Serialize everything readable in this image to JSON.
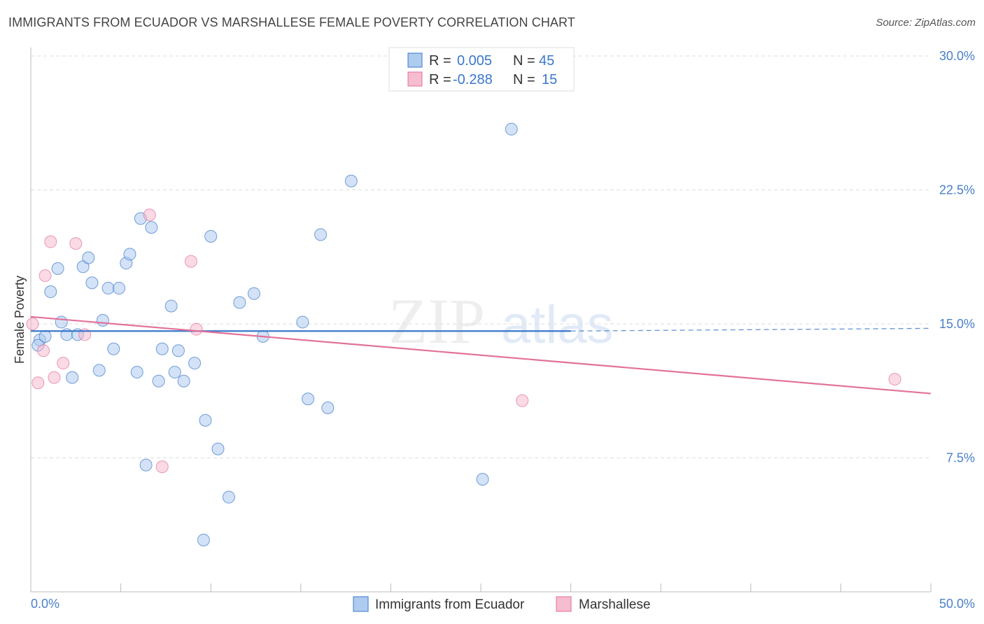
{
  "header": {
    "title": "IMMIGRANTS FROM ECUADOR VS MARSHALLESE FEMALE POVERTY CORRELATION CHART",
    "source": "Source: ZipAtlas.com"
  },
  "colors": {
    "blue": "#3a78c9",
    "blue_fill": "#aecbf0",
    "pink": "#e2719b",
    "pink_fill": "#f6bcd0",
    "grid": "#dddddd"
  },
  "chart_data": {
    "type": "scatter",
    "title": "IMMIGRANTS FROM ECUADOR VS MARSHALLESE FEMALE POVERTY CORRELATION CHART",
    "xlabel": "",
    "ylabel": "Female Poverty",
    "xlim": [
      0,
      50
    ],
    "ylim": [
      0,
      30
    ],
    "x_tick_labels": [
      "0.0%",
      "50.0%"
    ],
    "y_ticks": [
      7.5,
      15.0,
      22.5,
      30.0
    ],
    "y_tick_labels": [
      "7.5%",
      "15.0%",
      "22.5%",
      "30.0%"
    ],
    "grid": true,
    "watermark": "ZIPatlas",
    "stats": [
      {
        "r_label": "R =",
        "r": "0.005",
        "n_label": "N =",
        "n": "45"
      },
      {
        "r_label": "R =",
        "r": "-0.288",
        "n_label": "N =",
        "n": "15"
      }
    ],
    "series": [
      {
        "name": "Immigrants from Ecuador",
        "color": "#3a78c9",
        "points": [
          [
            0.5,
            14.1
          ],
          [
            0.8,
            14.3
          ],
          [
            1.1,
            16.8
          ],
          [
            1.5,
            18.1
          ],
          [
            1.7,
            15.1
          ],
          [
            2.0,
            14.4
          ],
          [
            2.3,
            12.0
          ],
          [
            2.6,
            14.4
          ],
          [
            2.9,
            18.2
          ],
          [
            3.2,
            18.7
          ],
          [
            3.4,
            17.3
          ],
          [
            3.8,
            12.4
          ],
          [
            4.0,
            15.2
          ],
          [
            4.3,
            17.0
          ],
          [
            4.6,
            13.6
          ],
          [
            4.9,
            17.0
          ],
          [
            5.3,
            18.4
          ],
          [
            5.5,
            18.9
          ],
          [
            5.9,
            12.3
          ],
          [
            6.1,
            20.9
          ],
          [
            6.4,
            7.1
          ],
          [
            6.7,
            20.4
          ],
          [
            7.1,
            11.8
          ],
          [
            7.3,
            13.6
          ],
          [
            7.8,
            16.0
          ],
          [
            8.0,
            12.3
          ],
          [
            8.2,
            13.5
          ],
          [
            8.5,
            11.8
          ],
          [
            9.1,
            12.8
          ],
          [
            9.6,
            2.9
          ],
          [
            9.7,
            9.6
          ],
          [
            10.0,
            19.9
          ],
          [
            10.4,
            8.0
          ],
          [
            11.0,
            5.3
          ],
          [
            11.6,
            16.2
          ],
          [
            12.4,
            16.7
          ],
          [
            12.9,
            14.3
          ],
          [
            15.1,
            15.1
          ],
          [
            15.4,
            10.8
          ],
          [
            16.1,
            20.0
          ],
          [
            16.5,
            10.3
          ],
          [
            17.8,
            23.0
          ],
          [
            25.1,
            6.3
          ],
          [
            26.7,
            25.9
          ],
          [
            0.4,
            13.8
          ]
        ],
        "trend": [
          [
            0,
            14.6
          ],
          [
            30,
            14.6
          ]
        ],
        "trend_ext": [
          [
            30,
            14.6
          ],
          [
            50,
            14.75
          ]
        ]
      },
      {
        "name": "Marshallese",
        "color": "#e2719b",
        "points": [
          [
            0.1,
            15.0
          ],
          [
            0.4,
            11.7
          ],
          [
            0.7,
            13.5
          ],
          [
            0.8,
            17.7
          ],
          [
            1.1,
            19.6
          ],
          [
            1.3,
            12.0
          ],
          [
            1.8,
            12.8
          ],
          [
            2.5,
            19.5
          ],
          [
            3.0,
            14.4
          ],
          [
            6.6,
            21.1
          ],
          [
            7.3,
            7.0
          ],
          [
            8.9,
            18.5
          ],
          [
            9.2,
            14.7
          ],
          [
            27.3,
            10.7
          ],
          [
            48.0,
            11.9
          ]
        ],
        "trend": [
          [
            0,
            15.4
          ],
          [
            50,
            11.1
          ]
        ]
      }
    ]
  },
  "legend": {
    "items": [
      {
        "label": "Immigrants from Ecuador"
      },
      {
        "label": "Marshallese"
      }
    ]
  }
}
